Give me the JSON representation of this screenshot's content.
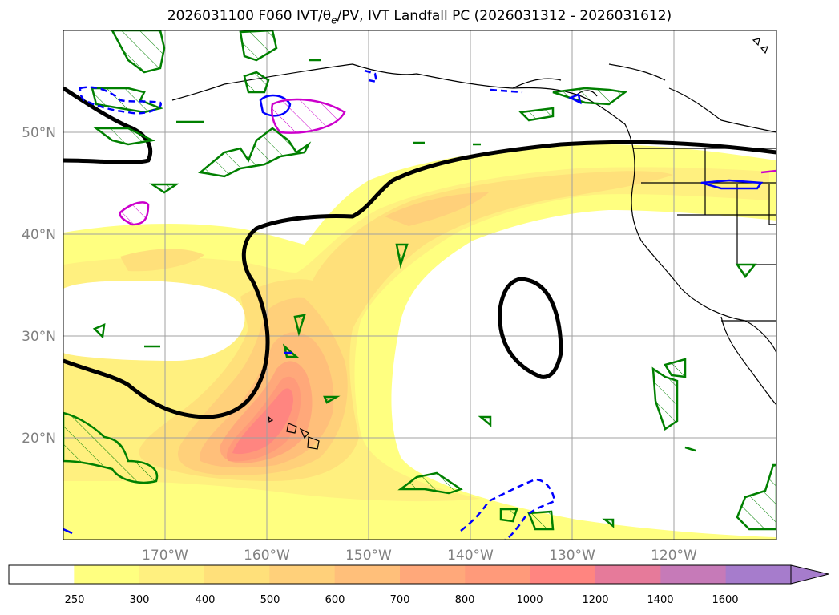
{
  "title": {
    "prefix": "2026031100 F060 IVT/",
    "theta": "θ",
    "theta_sub": "e",
    "suffix": "/PV, IVT Landfall PC (2026031312 - 2026031612)"
  },
  "map": {
    "lat_labels": [
      "50°N",
      "40°N",
      "30°N",
      "20°N"
    ],
    "lon_labels": [
      "170°W",
      "160°W",
      "150°W",
      "140°W",
      "130°W",
      "120°W"
    ]
  },
  "colorbar": {
    "labels": [
      "250",
      "300",
      "400",
      "500",
      "600",
      "700",
      "800",
      "1000",
      "1200",
      "1400",
      "1600"
    ],
    "colors": [
      "#ffffff",
      "#ffff80",
      "#fff07f",
      "#ffe07a",
      "#ffd07a",
      "#ffbf7a",
      "#ffa87a",
      "#ff9a7a",
      "#ff8580",
      "#e67a9a",
      "#c67ab8",
      "#a67ccc"
    ]
  },
  "colors": {
    "ivt_contour": "#000000",
    "pv_green": "#008000",
    "pv_blue": "#0000ff",
    "pv_magenta": "#cc00cc",
    "coast": "#000000",
    "grid": "#a0a0a0"
  }
}
